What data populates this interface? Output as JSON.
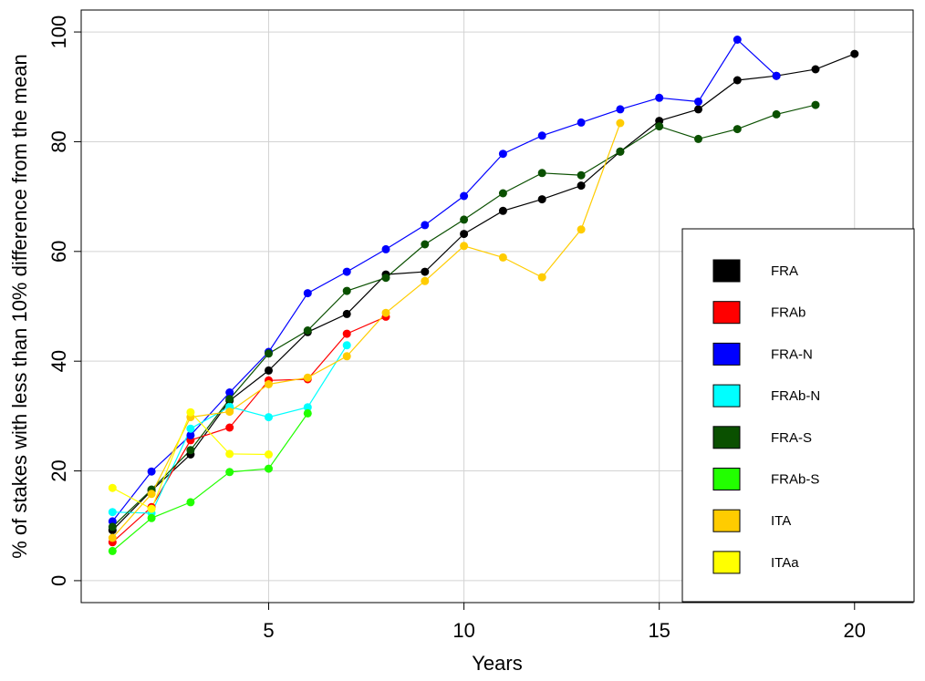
{
  "chart_data": {
    "type": "line",
    "xlabel": "Years",
    "ylabel": "% of stakes with less than 10% difference from the mean",
    "xlim": [
      0.2,
      21.5
    ],
    "ylim": [
      -4,
      104
    ],
    "xticks": [
      5,
      10,
      15,
      20
    ],
    "yticks": [
      0,
      20,
      40,
      60,
      80,
      100
    ],
    "grid": true,
    "legend_position": "bottom-right",
    "series": [
      {
        "name": "FRA",
        "color": "#000000",
        "x": [
          1,
          2,
          3,
          4,
          5,
          6,
          7,
          8,
          9,
          10,
          11,
          12,
          13,
          14,
          15,
          16,
          17,
          18,
          19,
          20
        ],
        "y": [
          9.2,
          16.4,
          23.0,
          32.8,
          38.3,
          45.3,
          48.6,
          55.8,
          56.3,
          63.2,
          67.4,
          69.5,
          72.0,
          78.2,
          83.8,
          85.9,
          91.2,
          92.0,
          93.2,
          96.0
        ]
      },
      {
        "name": "FRAb",
        "color": "#ff0000",
        "x": [
          1,
          2,
          3,
          4,
          5,
          6,
          7,
          8
        ],
        "y": [
          7.0,
          13.4,
          25.6,
          27.9,
          36.5,
          36.7,
          45.0,
          48.1
        ]
      },
      {
        "name": "FRA-N",
        "color": "#0000ff",
        "x": [
          1,
          2,
          3,
          4,
          5,
          6,
          7,
          8,
          9,
          10,
          11,
          12,
          13,
          14,
          15,
          16,
          17,
          18
        ],
        "y": [
          10.8,
          19.9,
          26.5,
          34.3,
          41.7,
          52.4,
          56.3,
          60.4,
          64.8,
          70.1,
          77.8,
          81.1,
          83.5,
          85.9,
          88.0,
          87.3,
          98.6,
          92.0
        ]
      },
      {
        "name": "FRAb-N",
        "color": "#00ffff",
        "x": [
          1,
          2,
          3,
          4,
          5,
          6,
          7
        ],
        "y": [
          12.5,
          12.3,
          27.7,
          31.7,
          29.8,
          31.6,
          42.9
        ]
      },
      {
        "name": "FRA-S",
        "color": "#0a5000",
        "x": [
          1,
          2,
          3,
          4,
          5,
          6,
          7,
          8,
          9,
          10,
          11,
          12,
          13,
          14,
          15,
          16,
          17,
          18,
          19
        ],
        "y": [
          9.8,
          16.6,
          23.8,
          33.1,
          41.4,
          45.6,
          52.8,
          55.2,
          61.3,
          65.8,
          70.6,
          74.3,
          73.9,
          78.2,
          82.8,
          80.5,
          82.3,
          85.0,
          86.7
        ]
      },
      {
        "name": "FRAb-S",
        "color": "#22ff00",
        "x": [
          1,
          2,
          3,
          4,
          5,
          6
        ],
        "y": [
          5.4,
          11.4,
          14.3,
          19.8,
          20.4,
          30.5
        ]
      },
      {
        "name": "ITA",
        "color": "#ffcc00",
        "x": [
          1,
          2,
          3,
          4,
          5,
          6,
          7,
          8,
          9,
          10,
          11,
          12,
          13,
          14
        ],
        "y": [
          7.8,
          15.8,
          29.8,
          30.8,
          35.8,
          37.0,
          40.9,
          48.8,
          54.6,
          61.0,
          58.9,
          55.3,
          64.0,
          83.4
        ]
      },
      {
        "name": "ITAa",
        "color": "#ffff00",
        "x": [
          1,
          2,
          3,
          4,
          5
        ],
        "y": [
          16.9,
          13.1,
          30.7,
          23.1,
          23.0
        ]
      }
    ]
  }
}
